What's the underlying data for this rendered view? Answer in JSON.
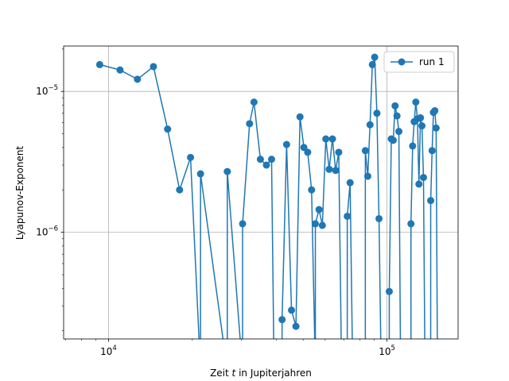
{
  "chart_data": {
    "type": "line",
    "xscale": "log",
    "yscale": "log",
    "xlim": [
      6900,
      180000
    ],
    "ylim": [
      1.75e-07,
      2.1e-05
    ],
    "grid": true,
    "legend_position": "upper-right",
    "xlabel": "Zeit t in Jupiterjahren",
    "xlabel_pre": "Zeit ",
    "xlabel_var": "t",
    "xlabel_post": " in Jupiterjahren",
    "ylabel": "Lyapunov-Exponent",
    "x_major_ticks": [
      {
        "value": 10000,
        "base": "10",
        "exp": "4"
      },
      {
        "value": 100000,
        "base": "10",
        "exp": "5"
      }
    ],
    "y_major_ticks": [
      {
        "value": 1e-06,
        "base": "10",
        "exp": "−6"
      },
      {
        "value": 1e-05,
        "base": "10",
        "exp": "−5"
      }
    ],
    "series": [
      {
        "name": "run 1",
        "color": "#1f77b4",
        "points": [
          [
            9300,
            1.55e-05
          ],
          [
            11000,
            1.42e-05
          ],
          [
            12700,
            1.22e-05
          ],
          [
            14500,
            1.5e-05
          ],
          [
            16300,
            5.4e-06
          ],
          [
            18000,
            2e-06
          ],
          [
            19700,
            3.4e-06
          ],
          [
            21400,
            null
          ],
          [
            21400,
            2.6e-06
          ],
          [
            26700,
            null
          ],
          [
            26700,
            2.7e-06
          ],
          [
            30300,
            null
          ],
          [
            30300,
            1.15e-06
          ],
          [
            32100,
            5.9e-06
          ],
          [
            33300,
            8.4e-06
          ],
          [
            35100,
            3.3e-06
          ],
          [
            36900,
            3e-06
          ],
          [
            38500,
            3.3e-06
          ],
          [
            39300,
            null
          ],
          [
            42000,
            null
          ],
          [
            42000,
            2.4e-07
          ],
          [
            43600,
            4.2e-06
          ],
          [
            45400,
            2.8e-07
          ],
          [
            47100,
            2.15e-07
          ],
          [
            48700,
            6.6e-06
          ],
          [
            50300,
            4e-06
          ],
          [
            51900,
            3.7e-06
          ],
          [
            53600,
            2e-06
          ],
          [
            55300,
            null
          ],
          [
            55300,
            1.15e-06
          ],
          [
            57000,
            1.45e-06
          ],
          [
            58600,
            1.12e-06
          ],
          [
            60300,
            4.6e-06
          ],
          [
            62000,
            2.8e-06
          ],
          [
            63700,
            4.6e-06
          ],
          [
            65400,
            2.75e-06
          ],
          [
            67100,
            3.7e-06
          ],
          [
            68700,
            null
          ],
          [
            72000,
            null
          ],
          [
            72000,
            1.3e-06
          ],
          [
            73700,
            2.25e-06
          ],
          [
            75300,
            null
          ],
          [
            83600,
            null
          ],
          [
            83600,
            3.8e-06
          ],
          [
            85300,
            2.5e-06
          ],
          [
            86900,
            5.8e-06
          ],
          [
            88600,
            1.55e-05
          ],
          [
            90300,
            1.75e-05
          ],
          [
            92000,
            7e-06
          ],
          [
            93600,
            1.25e-06
          ],
          [
            95300,
            null
          ],
          [
            101900,
            null
          ],
          [
            101900,
            3.8e-07
          ],
          [
            103600,
            4.6e-06
          ],
          [
            105300,
            4.5e-06
          ],
          [
            106900,
            7.9e-06
          ],
          [
            108600,
            6.7e-06
          ],
          [
            110300,
            5.2e-06
          ],
          [
            111900,
            null
          ],
          [
            121900,
            null
          ],
          [
            121900,
            1.15e-06
          ],
          [
            123600,
            4.1e-06
          ],
          [
            125200,
            6.1e-06
          ],
          [
            126900,
            8.4e-06
          ],
          [
            128600,
            6.4e-06
          ],
          [
            130200,
            2.2e-06
          ],
          [
            131900,
            6.5e-06
          ],
          [
            133500,
            5.7e-06
          ],
          [
            135200,
            2.45e-06
          ],
          [
            136900,
            null
          ],
          [
            143500,
            null
          ],
          [
            143500,
            1.68e-06
          ],
          [
            145200,
            3.8e-06
          ],
          [
            146800,
            7.1e-06
          ],
          [
            148500,
            7.3e-06
          ],
          [
            150100,
            5.5e-06
          ],
          [
            151800,
            null
          ]
        ]
      }
    ]
  }
}
